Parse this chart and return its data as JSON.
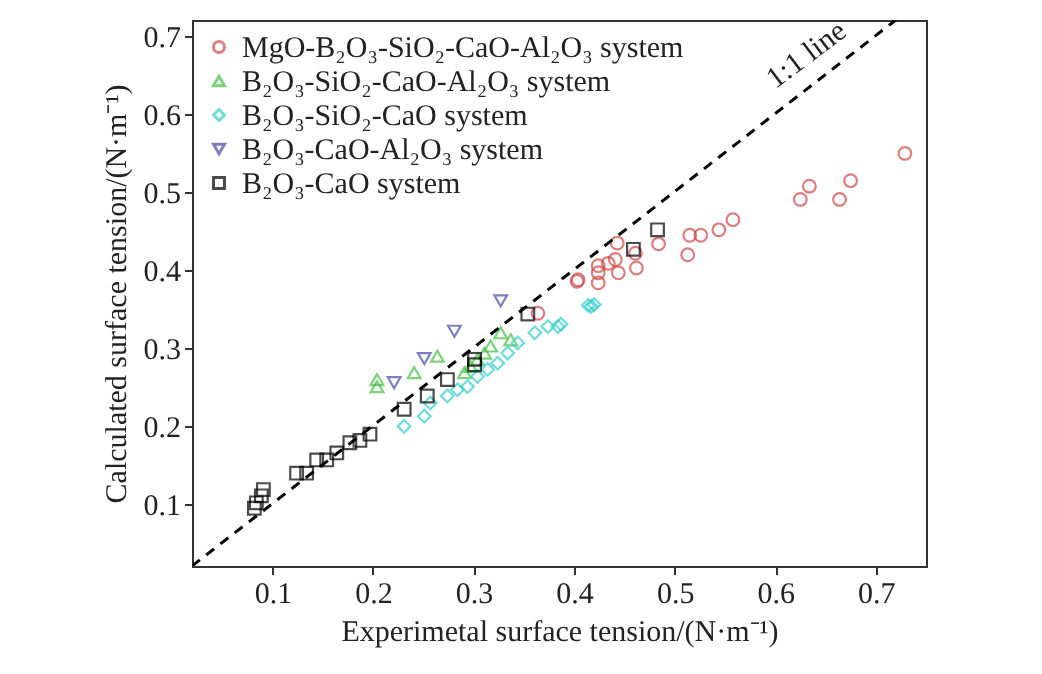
{
  "chart_data": {
    "type": "scatter",
    "xlabel": "Experimetal surface tension/(N·m⁻¹)",
    "ylabel": "Calculated surface tension/(N·m⁻¹)",
    "xlim": [
      0.02,
      0.75
    ],
    "ylim": [
      0.02,
      0.72
    ],
    "xticks": [
      0.1,
      0.2,
      0.3,
      0.4,
      0.5,
      0.6,
      0.7
    ],
    "yticks": [
      0.1,
      0.2,
      0.3,
      0.4,
      0.5,
      0.6,
      0.7
    ],
    "legend": "top left",
    "annotations": [
      {
        "text": "1:1 line",
        "x": 0.64,
        "y": 0.66
      }
    ],
    "series": [
      {
        "name": "MgO-B₂O₃-SiO₂-CaO-Al₂O₃ system",
        "color": "#d04848",
        "marker": "circle",
        "x": [
          0.729,
          0.634,
          0.625,
          0.675,
          0.664,
          0.558,
          0.544,
          0.526,
          0.515,
          0.513,
          0.484,
          0.462,
          0.461,
          0.443,
          0.441,
          0.444,
          0.424,
          0.424,
          0.434,
          0.404,
          0.403,
          0.364,
          0.424
        ],
        "values": [
          0.549,
          0.507,
          0.49,
          0.514,
          0.49,
          0.464,
          0.451,
          0.444,
          0.444,
          0.419,
          0.433,
          0.402,
          0.421,
          0.434,
          0.413,
          0.396,
          0.396,
          0.383,
          0.408,
          0.387,
          0.385,
          0.344,
          0.405
        ]
      },
      {
        "name": "B₂O₃-SiO₂-CaO-Al₂O₃ system",
        "color": "#44c044",
        "marker": "triangle",
        "x": [
          0.204,
          0.204,
          0.241,
          0.264,
          0.297,
          0.311,
          0.317,
          0.327,
          0.337,
          0.304,
          0.291
        ],
        "values": [
          0.259,
          0.25,
          0.268,
          0.289,
          0.276,
          0.293,
          0.302,
          0.319,
          0.31,
          0.285,
          0.268
        ]
      },
      {
        "name": "B₂O₃-SiO₂-CaO system",
        "color": "#33cccc",
        "marker": "diamond",
        "x": [
          0.414,
          0.42,
          0.387,
          0.417,
          0.384,
          0.374,
          0.361,
          0.344,
          0.334,
          0.324,
          0.314,
          0.304,
          0.294,
          0.284,
          0.274,
          0.257,
          0.251,
          0.231
        ],
        "values": [
          0.354,
          0.355,
          0.33,
          0.353,
          0.327,
          0.327,
          0.319,
          0.306,
          0.293,
          0.28,
          0.272,
          0.263,
          0.25,
          0.246,
          0.238,
          0.229,
          0.212,
          0.199
        ]
      },
      {
        "name": "B₂O₃-CaO-Al₂O₃ system",
        "color": "#4848a8",
        "marker": "triangle-down",
        "x": [
          0.221,
          0.251,
          0.281,
          0.327
        ],
        "values": [
          0.255,
          0.286,
          0.321,
          0.36
        ]
      },
      {
        "name": "B₂O₃-CaO system",
        "color": "#000000",
        "marker": "square",
        "x": [
          0.091,
          0.089,
          0.084,
          0.082,
          0.124,
          0.134,
          0.144,
          0.154,
          0.164,
          0.177,
          0.187,
          0.197,
          0.231,
          0.254,
          0.274,
          0.301,
          0.301,
          0.354,
          0.459,
          0.483
        ],
        "values": [
          0.118,
          0.11,
          0.101,
          0.094,
          0.139,
          0.139,
          0.156,
          0.156,
          0.165,
          0.178,
          0.181,
          0.189,
          0.221,
          0.238,
          0.259,
          0.285,
          0.278,
          0.343,
          0.426,
          0.451
        ]
      },
      {
        "type": "line",
        "color": "#000000",
        "line_style": "dashed",
        "x": [
          0.02,
          0.72
        ],
        "values": [
          0.02,
          0.72
        ]
      }
    ]
  }
}
